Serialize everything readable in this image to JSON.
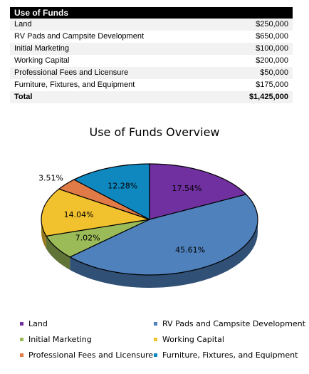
{
  "table": {
    "header": "Use of Funds",
    "rows": [
      {
        "label": "Land",
        "amount": "$250,000"
      },
      {
        "label": "RV Pads and Campsite Development",
        "amount": "$650,000"
      },
      {
        "label": "Initial Marketing",
        "amount": "$100,000"
      },
      {
        "label": "Working Capital",
        "amount": "$200,000"
      },
      {
        "label": "Professional Fees and Licensure",
        "amount": "$50,000"
      },
      {
        "label": "Furniture, Fixtures, and Equipment",
        "amount": "$175,000"
      }
    ],
    "total": {
      "label": "Total",
      "amount": "$1,425,000"
    }
  },
  "chart_data": {
    "type": "pie",
    "title": "Use of Funds Overview",
    "categories": [
      "Land",
      "RV Pads and Campsite Development",
      "Initial Marketing",
      "Working Capital",
      "Professional Fees and Licensure",
      "Furniture, Fixtures, and Equipment"
    ],
    "values": [
      250000,
      650000,
      100000,
      200000,
      50000,
      175000
    ],
    "labels": [
      "17.54%",
      "45.61%",
      "7.02%",
      "14.04%",
      "3.51%",
      "12.28%"
    ],
    "colors": [
      "#7030a0",
      "#4f81bd",
      "#9bbb59",
      "#f2c12e",
      "#e07b47",
      "#0f88c0"
    ],
    "legend_position": "bottom"
  }
}
